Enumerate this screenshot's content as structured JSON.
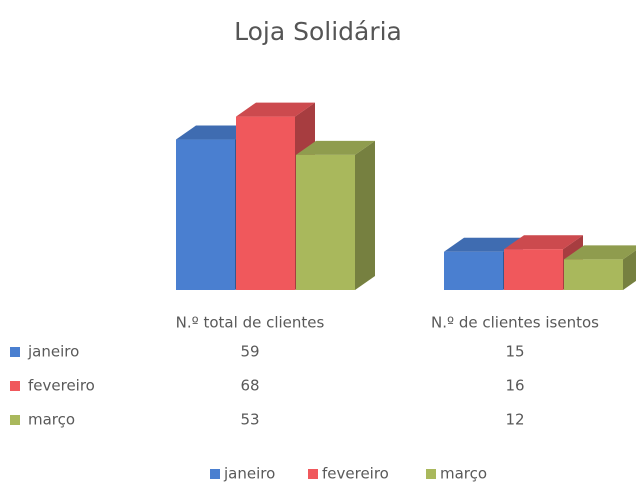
{
  "chart_data": {
    "type": "bar3d",
    "title": "Loja Solidária",
    "categories": [
      "N.º total de clientes",
      "N.º de clientes isentos"
    ],
    "series": [
      {
        "name": "janeiro",
        "color": "#4a7fd0",
        "values": [
          59,
          15
        ]
      },
      {
        "name": "fevereiro",
        "color": "#f0585c",
        "values": [
          68,
          16
        ]
      },
      {
        "name": "março",
        "color": "#a9b85c",
        "values": [
          53,
          12
        ]
      }
    ],
    "data_table": true,
    "legend": "bottom"
  }
}
